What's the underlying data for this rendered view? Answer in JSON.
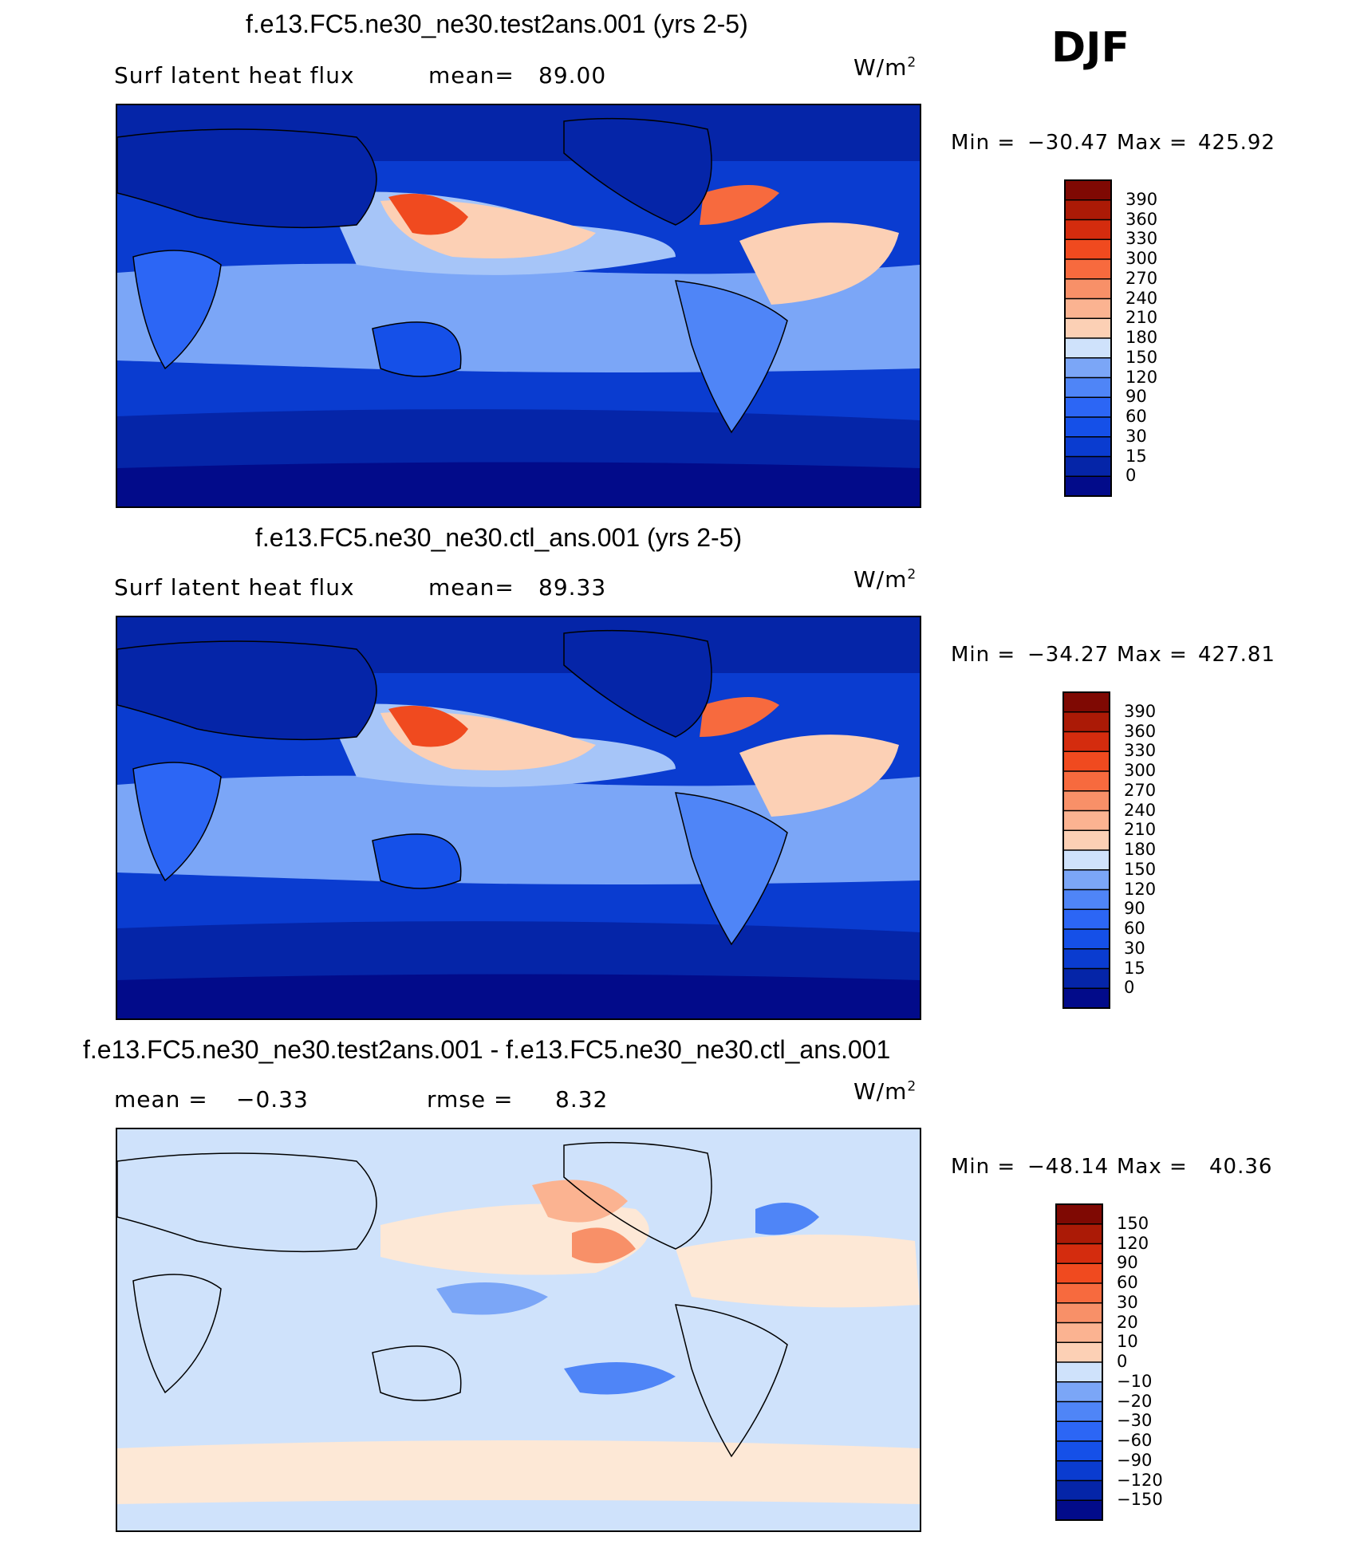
{
  "season": "DJF",
  "colors": {
    "fill_low": [
      "#020b8a",
      "#0525a8",
      "#0a3cd0",
      "#1550e8",
      "#2c66f5",
      "#4f85f7",
      "#7ba6f7",
      "#a6c5f8",
      "#cfe2fb"
    ],
    "fill_high": [
      "#fde8d6",
      "#fcd0b5",
      "#fbb391",
      "#f89068",
      "#f76a3e",
      "#f04a1f",
      "#d42c0e",
      "#ab1a06",
      "#7f0903"
    ]
  },
  "chart_data": [
    {
      "type": "heatmap",
      "title": "f.e13.FC5.ne30_ne30.test2ans.001 (yrs 2-5)",
      "variable": "Surf latent heat flux",
      "mean_label": "mean=",
      "mean": "89.00",
      "units": "W/m",
      "units_exp": "2",
      "min_label": "Min =",
      "min": "−30.47",
      "max_label": "Max =",
      "max": "425.92",
      "levels": [
        "390",
        "360",
        "330",
        "300",
        "270",
        "240",
        "210",
        "180",
        "150",
        "120",
        "90",
        "60",
        "30",
        "15",
        "0"
      ]
    },
    {
      "type": "heatmap",
      "title": "f.e13.FC5.ne30_ne30.ctl_ans.001 (yrs 2-5)",
      "variable": "Surf latent heat flux",
      "mean_label": "mean=",
      "mean": "89.33",
      "units": "W/m",
      "units_exp": "2",
      "min_label": "Min =",
      "min": "−34.27",
      "max_label": "Max =",
      "max": "427.81",
      "levels": [
        "390",
        "360",
        "330",
        "300",
        "270",
        "240",
        "210",
        "180",
        "150",
        "120",
        "90",
        "60",
        "30",
        "15",
        "0"
      ]
    },
    {
      "type": "heatmap",
      "title": "f.e13.FC5.ne30_ne30.test2ans.001 - f.e13.FC5.ne30_ne30.ctl_ans.001",
      "mean_label": "mean =",
      "mean": "−0.33",
      "rmse_label": "rmse =",
      "rmse": "8.32",
      "units": "W/m",
      "units_exp": "2",
      "min_label": "Min =",
      "min": "−48.14",
      "max_label": "Max =",
      "max": "40.36",
      "levels": [
        "150",
        "120",
        "90",
        "60",
        "30",
        "20",
        "10",
        "0",
        "−10",
        "−20",
        "−30",
        "−60",
        "−90",
        "−120",
        "−150"
      ]
    }
  ]
}
